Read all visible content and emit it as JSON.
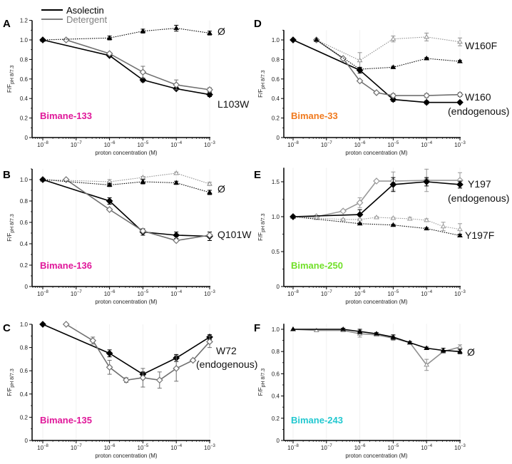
{
  "legend": {
    "items": [
      {
        "label": "Asolectin",
        "color": "#000000"
      },
      {
        "label": "Detergent",
        "color": "#808080"
      }
    ]
  },
  "chart_data": [
    {
      "type": "line",
      "panel": "A",
      "construct_label": "Bimane-133",
      "construct_color": "#e0189a",
      "xlabel": "proton concentration (M)",
      "ylabel": "F/F pH 8/7.3",
      "xscale": "log",
      "xlim_exp": [
        -8,
        -3
      ],
      "xticks": [
        "10⁻⁸",
        "10⁻⁷",
        "10⁻⁶",
        "10⁻⁵",
        "10⁻⁴",
        "10⁻³"
      ],
      "ylim": [
        0,
        1.2
      ],
      "yticks": [
        0,
        0.2,
        0.4,
        0.6,
        0.8,
        1.0,
        1.2
      ],
      "annotations": [
        {
          "text": "Ø",
          "near_series": "Ø asolectin"
        },
        {
          "text": "L103W",
          "near_series": "L103W asolectin"
        }
      ],
      "series": [
        {
          "name": "L103W asolectin",
          "style": "solid",
          "color": "#000000",
          "marker": "diamond-filled",
          "x_exp": [
            -8,
            -6,
            -5,
            -4,
            -3
          ],
          "y": [
            1.0,
            0.84,
            0.59,
            0.5,
            0.44
          ],
          "err": [
            0,
            0.01,
            0.02,
            0.015,
            0.02
          ]
        },
        {
          "name": "L103W detergent",
          "style": "solid",
          "color": "#707070",
          "marker": "diamond-open",
          "x_exp": [
            -7.3,
            -6,
            -5,
            -4,
            -3
          ],
          "y": [
            1.0,
            0.86,
            0.67,
            0.54,
            0.49
          ],
          "err": [
            0,
            0.01,
            0.06,
            0.05,
            0.02
          ]
        },
        {
          "name": "Ø asolectin",
          "style": "dotted",
          "color": "#000000",
          "marker": "triangle-filled",
          "x_exp": [
            -8,
            -6,
            -5,
            -4,
            -3
          ],
          "y": [
            1.0,
            1.02,
            1.09,
            1.12,
            1.07
          ],
          "err": [
            0,
            0.02,
            0.02,
            0.03,
            0.02
          ]
        }
      ]
    },
    {
      "type": "line",
      "panel": "B",
      "construct_label": "Bimane-136",
      "construct_color": "#e0189a",
      "xlabel": "proton concentration (M)",
      "ylabel": "F/F pH 8/7.3",
      "xscale": "log",
      "xlim_exp": [
        -8,
        -3
      ],
      "xticks": [
        "10⁻⁸",
        "10⁻⁷",
        "10⁻⁶",
        "10⁻⁵",
        "10⁻⁴",
        "10⁻³"
      ],
      "ylim": [
        0,
        1.1
      ],
      "yticks": [
        0,
        0.2,
        0.4,
        0.6,
        0.8,
        1.0
      ],
      "annotations": [
        {
          "text": "Ø"
        },
        {
          "text": "Q101W"
        }
      ],
      "series": [
        {
          "name": "Q101W asolectin",
          "style": "solid",
          "color": "#000000",
          "marker": "diamond-filled",
          "x_exp": [
            -8,
            -6,
            -5,
            -4,
            -3
          ],
          "y": [
            1.0,
            0.8,
            0.51,
            0.48,
            0.47
          ],
          "err": [
            0,
            0.03,
            0.03,
            0.03,
            0.04
          ]
        },
        {
          "name": "Q101W detergent",
          "style": "solid",
          "color": "#707070",
          "marker": "diamond-open",
          "x_exp": [
            -7.3,
            -6,
            -5,
            -4,
            -3
          ],
          "y": [
            1.0,
            0.72,
            0.52,
            0.43,
            0.48
          ],
          "err": [
            0,
            0.01,
            0.01,
            0.01,
            0.01
          ]
        },
        {
          "name": "Ø detergent",
          "style": "dotted",
          "color": "#909090",
          "marker": "triangle-open",
          "x_exp": [
            -8,
            -6,
            -5,
            -4,
            -3
          ],
          "y": [
            1.0,
            0.98,
            1.02,
            1.06,
            0.96
          ],
          "err": [
            0,
            0.02,
            0.01,
            0.01,
            0.015
          ]
        },
        {
          "name": "Ø asolectin",
          "style": "dotted",
          "color": "#000000",
          "marker": "triangle-filled",
          "x_exp": [
            -8,
            -6,
            -5,
            -4,
            -3
          ],
          "y": [
            1.0,
            0.95,
            0.98,
            0.97,
            0.88
          ],
          "err": [
            0,
            0.015,
            0.02,
            0.015,
            0.02
          ]
        }
      ]
    },
    {
      "type": "line",
      "panel": "C",
      "construct_label": "Bimane-135",
      "construct_color": "#e0189a",
      "xlabel": "proton concentration (M)",
      "ylabel": "F/F pH 8/7.3",
      "xscale": "log",
      "xlim_exp": [
        -8,
        -3
      ],
      "xticks": [
        "10⁻⁸",
        "10⁻⁷",
        "10⁻⁶",
        "10⁻⁵",
        "10⁻⁴",
        "10⁻³"
      ],
      "ylim": [
        0,
        1.0
      ],
      "yticks": [
        0,
        0.2,
        0.4,
        0.6,
        0.8,
        1.0
      ],
      "annotations": [
        {
          "text": "W72"
        },
        {
          "text": "(endogenous)"
        }
      ],
      "series": [
        {
          "name": "W72 asolectin",
          "style": "solid",
          "color": "#000000",
          "marker": "diamond-filled",
          "x_exp": [
            -8,
            -6,
            -5,
            -4,
            -3
          ],
          "y": [
            1.0,
            0.75,
            0.57,
            0.71,
            0.89
          ],
          "err": [
            0,
            0.03,
            0.02,
            0.03,
            0.02
          ]
        },
        {
          "name": "W72 detergent",
          "style": "solid",
          "color": "#707070",
          "marker": "diamond-open",
          "x_exp": [
            -7.3,
            -6.5,
            -6,
            -5.5,
            -5,
            -4.5,
            -4,
            -3.5,
            -3
          ],
          "y": [
            1.0,
            0.86,
            0.63,
            0.52,
            0.54,
            0.52,
            0.62,
            0.69,
            0.85
          ],
          "err": [
            0,
            0.03,
            0.06,
            0.02,
            0.08,
            0.07,
            0.11,
            0.01,
            0.05
          ]
        }
      ]
    },
    {
      "type": "line",
      "panel": "D",
      "construct_label": "Bimane-33",
      "construct_color": "#f07a1e",
      "xlabel": "proton concentration (M)",
      "ylabel": "F/F pH 8/7.3",
      "xscale": "log",
      "xlim_exp": [
        -8,
        -3
      ],
      "xticks": [
        "10⁻⁸",
        "10⁻⁷",
        "10⁻⁶",
        "10⁻⁵",
        "10⁻⁴",
        "10⁻³"
      ],
      "ylim": [
        0,
        1.1
      ],
      "yticks": [
        0,
        0.2,
        0.4,
        0.6,
        0.8,
        1.0
      ],
      "annotations": [
        {
          "text": "W160F"
        },
        {
          "text": "W160"
        },
        {
          "text": "(endogenous)"
        }
      ],
      "series": [
        {
          "name": "W160 asolectin",
          "style": "solid",
          "color": "#000000",
          "marker": "diamond-filled",
          "x_exp": [
            -8,
            -6,
            -5,
            -4,
            -3
          ],
          "y": [
            1.0,
            0.69,
            0.39,
            0.36,
            0.36
          ],
          "err": [
            0,
            0.03,
            0.02,
            0.015,
            0.01
          ]
        },
        {
          "name": "W160 detergent",
          "style": "solid",
          "color": "#707070",
          "marker": "diamond-open",
          "x_exp": [
            -7.3,
            -6.5,
            -6,
            -5.5,
            -5,
            -4,
            -3
          ],
          "y": [
            1.0,
            0.81,
            0.58,
            0.46,
            0.43,
            0.43,
            0.44
          ],
          "err": [
            0,
            0.01,
            0.01,
            0.01,
            0.02,
            0.02,
            0.02
          ]
        },
        {
          "name": "W160F detergent",
          "style": "dotted",
          "color": "#909090",
          "marker": "triangle-open",
          "x_exp": [
            -7.3,
            -6,
            -5,
            -4,
            -3
          ],
          "y": [
            1.0,
            0.79,
            1.01,
            1.03,
            0.98
          ],
          "err": [
            0,
            0.08,
            0.03,
            0.04,
            0.04
          ]
        },
        {
          "name": "W160F asolectin",
          "style": "dotted",
          "color": "#000000",
          "marker": "triangle-filled",
          "x_exp": [
            -7.3,
            -6,
            -5,
            -4,
            -3
          ],
          "y": [
            1.0,
            0.7,
            0.72,
            0.81,
            0.78
          ],
          "err": [
            0,
            0.01,
            0.01,
            0.01,
            0.01
          ]
        }
      ]
    },
    {
      "type": "line",
      "panel": "E",
      "construct_label": "Bimane-250",
      "construct_color": "#72e02a",
      "xlabel": "proton concentration (M)",
      "ylabel": "F/F pH 8/7.3",
      "xscale": "log",
      "xlim_exp": [
        -8,
        -3
      ],
      "xticks": [
        "10⁻⁸",
        "10⁻⁷",
        "10⁻⁶",
        "10⁻⁵",
        "10⁻⁴",
        "10⁻³"
      ],
      "ylim": [
        0,
        1.7
      ],
      "yticks": [
        0,
        0.5,
        1.0,
        1.5
      ],
      "annotations": [
        {
          "text": "Y197"
        },
        {
          "text": "(endogenous)"
        },
        {
          "text": "Y197F"
        }
      ],
      "series": [
        {
          "name": "Y197 detergent",
          "style": "solid",
          "color": "#999999",
          "marker": "diamond-open",
          "x_exp": [
            -8,
            -7.3,
            -6.5,
            -6,
            -5.5,
            -5,
            -4,
            -3
          ],
          "y": [
            1.0,
            1.0,
            1.08,
            1.2,
            1.51,
            1.51,
            1.52,
            1.52
          ],
          "err": [
            0,
            0,
            0.01,
            0.07,
            0.01,
            0.13,
            0.16,
            0.11
          ]
        },
        {
          "name": "Y197 asolectin",
          "style": "solid",
          "color": "#000000",
          "marker": "diamond-filled",
          "x_exp": [
            -8,
            -6,
            -5,
            -4,
            -3
          ],
          "y": [
            1.0,
            1.03,
            1.46,
            1.5,
            1.46
          ],
          "err": [
            0,
            0.07,
            0.1,
            0.06,
            0.05
          ]
        },
        {
          "name": "Y197F detergent",
          "style": "dotted",
          "color": "#999999",
          "marker": "triangle-open",
          "x_exp": [
            -8,
            -7.3,
            -6.5,
            -6,
            -5.5,
            -5,
            -4.5,
            -4,
            -3.5,
            -3
          ],
          "y": [
            1.0,
            0.98,
            0.96,
            0.96,
            0.99,
            0.98,
            0.97,
            0.95,
            0.86,
            0.82
          ],
          "err": [
            0,
            0,
            0.01,
            0.01,
            0.01,
            0.01,
            0.02,
            0.02,
            0.06,
            0.08
          ]
        },
        {
          "name": "Y197F asolectin",
          "style": "dotted",
          "color": "#000000",
          "marker": "triangle-filled",
          "x_exp": [
            -8,
            -6,
            -5,
            -4,
            -3
          ],
          "y": [
            1.0,
            0.9,
            0.88,
            0.83,
            0.73
          ],
          "err": [
            0,
            0.01,
            0.01,
            0.01,
            0.02
          ]
        }
      ]
    },
    {
      "type": "line",
      "panel": "F",
      "construct_label": "Bimane-243",
      "construct_color": "#22c8d0",
      "xlabel": "proton concentration (M)",
      "ylabel": "F/F pH 8/7.3",
      "xscale": "log",
      "xlim_exp": [
        -8,
        -3
      ],
      "xticks": [
        "10⁻⁸",
        "10⁻⁷",
        "10⁻⁶",
        "10⁻⁵",
        "10⁻⁴",
        "10⁻³"
      ],
      "ylim": [
        0,
        1.05
      ],
      "yticks": [
        0,
        0.2,
        0.4,
        0.6,
        0.8,
        1.0
      ],
      "annotations": [
        {
          "text": "Ø"
        }
      ],
      "series": [
        {
          "name": "Ø detergent",
          "style": "solid",
          "color": "#909090",
          "marker": "triangle-open",
          "x_exp": [
            -8,
            -7.3,
            -6.5,
            -6,
            -5.5,
            -5,
            -4.5,
            -4,
            -3.5,
            -3
          ],
          "y": [
            1.0,
            0.99,
            0.99,
            0.96,
            0.95,
            0.92,
            0.88,
            0.68,
            0.8,
            0.84
          ],
          "err": [
            0,
            0.01,
            0.01,
            0.03,
            0.01,
            0.02,
            0.01,
            0.05,
            0.01,
            0.02
          ]
        },
        {
          "name": "Ø asolectin",
          "style": "solid",
          "color": "#000000",
          "marker": "triangle-filled",
          "x_exp": [
            -8,
            -6.5,
            -6,
            -5.5,
            -5,
            -4.5,
            -4,
            -3.5,
            -3
          ],
          "y": [
            1.0,
            1.0,
            0.98,
            0.96,
            0.93,
            0.88,
            0.83,
            0.81,
            0.8
          ],
          "err": [
            0,
            0.01,
            0.02,
            0.01,
            0.02,
            0.01,
            0.01,
            0.02,
            0.02
          ]
        }
      ]
    }
  ]
}
